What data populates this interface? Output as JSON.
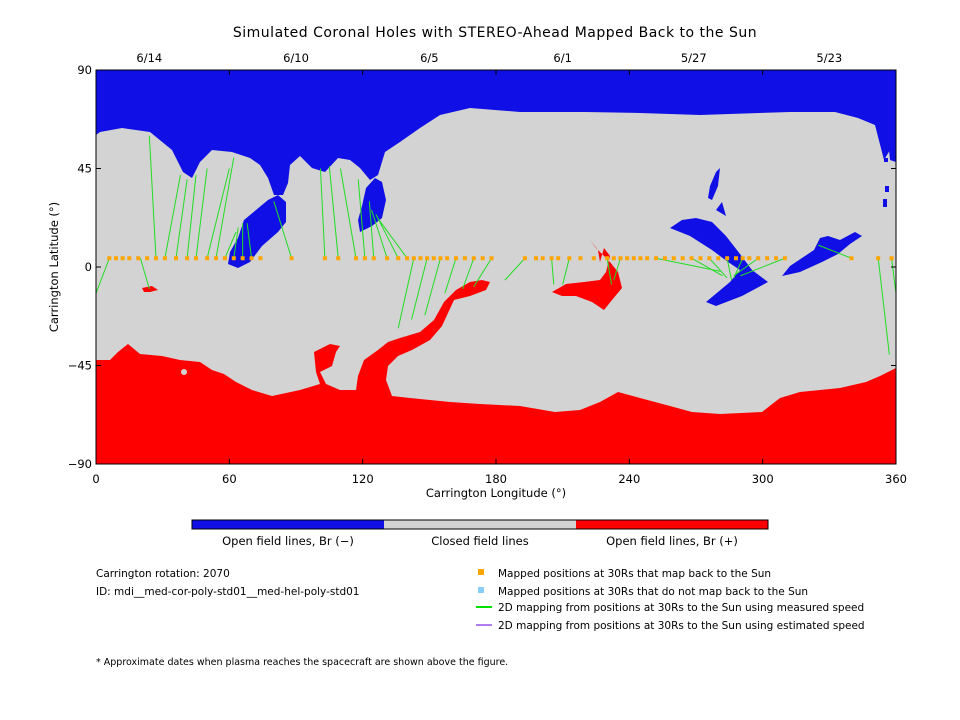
{
  "chart_data": {
    "type": "map",
    "title": "Simulated Coronal Holes with STEREO-Ahead Mapped Back to the Sun",
    "xlabel": "Carrington Longitude (°)",
    "ylabel": "Carrington Latitude (°)",
    "xlim": [
      0,
      360
    ],
    "ylim": [
      -90,
      90
    ],
    "x_ticks": [
      0,
      60,
      120,
      180,
      240,
      300,
      360
    ],
    "y_ticks": [
      90,
      45,
      0,
      -45,
      -90
    ],
    "y_tick_labels": [
      "90",
      "45",
      "0",
      "−45",
      "−90"
    ],
    "top_dates": [
      {
        "label": "6/14",
        "lon": 24
      },
      {
        "label": "6/10",
        "lon": 90
      },
      {
        "label": "6/5",
        "lon": 150
      },
      {
        "label": "6/1",
        "lon": 210
      },
      {
        "label": "5/27",
        "lon": 269
      },
      {
        "label": "5/23",
        "lon": 330
      }
    ],
    "colorbar": [
      {
        "label": "Open field lines, Br (−)",
        "color": "#1010e6"
      },
      {
        "label": "Closed field lines",
        "color": "#d3d3d3"
      },
      {
        "label": "Open field lines, Br (+)",
        "color": "#ff0000"
      }
    ],
    "mapped_points": {
      "name": "Mapped positions at 30Rs that map back to the Sun",
      "color": "#ffa500",
      "lat": 4,
      "lon": [
        6,
        9,
        12,
        15,
        19,
        23,
        27,
        31,
        36,
        41,
        45,
        50,
        54,
        58,
        62,
        66,
        70,
        74,
        88,
        103,
        109,
        117,
        121,
        125,
        131,
        136,
        140,
        143,
        146,
        149,
        152,
        155,
        158,
        162,
        166,
        170,
        174,
        178,
        193,
        198,
        201,
        205,
        208,
        213,
        218,
        224,
        230,
        233,
        236,
        239,
        242,
        245,
        248,
        252,
        256,
        260,
        264,
        268,
        272,
        276,
        280,
        284,
        288,
        291,
        294,
        298,
        302,
        306,
        310,
        340,
        352,
        358
      ]
    },
    "mapping_lines": [
      {
        "from": [
          6,
          4
        ],
        "to": [
          0,
          -12
        ]
      },
      {
        "from": [
          20,
          4
        ],
        "to": [
          24,
          -10
        ]
      },
      {
        "from": [
          27,
          4
        ],
        "to": [
          24,
          60
        ]
      },
      {
        "from": [
          31,
          4
        ],
        "to": [
          38,
          42
        ]
      },
      {
        "from": [
          36,
          4
        ],
        "to": [
          41,
          40
        ]
      },
      {
        "from": [
          41,
          4
        ],
        "to": [
          45,
          42
        ]
      },
      {
        "from": [
          45,
          4
        ],
        "to": [
          50,
          45
        ]
      },
      {
        "from": [
          50,
          4
        ],
        "to": [
          60,
          45
        ]
      },
      {
        "from": [
          54,
          4
        ],
        "to": [
          62,
          50
        ]
      },
      {
        "from": [
          58,
          4
        ],
        "to": [
          63,
          16
        ]
      },
      {
        "from": [
          62,
          4
        ],
        "to": [
          64,
          18
        ]
      },
      {
        "from": [
          66,
          4
        ],
        "to": [
          66,
          20
        ]
      },
      {
        "from": [
          70,
          4
        ],
        "to": [
          68,
          20
        ]
      },
      {
        "from": [
          88,
          4
        ],
        "to": [
          80,
          30
        ]
      },
      {
        "from": [
          103,
          4
        ],
        "to": [
          101,
          45
        ]
      },
      {
        "from": [
          109,
          4
        ],
        "to": [
          105,
          46
        ]
      },
      {
        "from": [
          117,
          4
        ],
        "to": [
          110,
          45
        ]
      },
      {
        "from": [
          121,
          4
        ],
        "to": [
          118,
          40
        ]
      },
      {
        "from": [
          125,
          4
        ],
        "to": [
          123,
          30
        ]
      },
      {
        "from": [
          131,
          4
        ],
        "to": [
          124,
          26
        ]
      },
      {
        "from": [
          136,
          4
        ],
        "to": [
          126,
          24
        ]
      },
      {
        "from": [
          140,
          4
        ],
        "to": [
          127,
          22
        ]
      },
      {
        "from": [
          143,
          4
        ],
        "to": [
          136,
          -28
        ]
      },
      {
        "from": [
          149,
          4
        ],
        "to": [
          142,
          -24
        ]
      },
      {
        "from": [
          155,
          4
        ],
        "to": [
          148,
          -22
        ]
      },
      {
        "from": [
          162,
          4
        ],
        "to": [
          157,
          -12
        ]
      },
      {
        "from": [
          170,
          4
        ],
        "to": [
          165,
          -10
        ]
      },
      {
        "from": [
          178,
          4
        ],
        "to": [
          170,
          -9
        ]
      },
      {
        "from": [
          193,
          4
        ],
        "to": [
          184,
          -6
        ]
      },
      {
        "from": [
          205,
          4
        ],
        "to": [
          206,
          -8
        ]
      },
      {
        "from": [
          213,
          4
        ],
        "to": [
          210,
          -8
        ]
      },
      {
        "from": [
          230,
          4
        ],
        "to": [
          232,
          -8
        ]
      },
      {
        "from": [
          236,
          4
        ],
        "to": [
          233,
          -6
        ]
      },
      {
        "from": [
          252,
          4
        ],
        "to": [
          281,
          -2
        ]
      },
      {
        "from": [
          268,
          4
        ],
        "to": [
          282,
          -4
        ]
      },
      {
        "from": [
          276,
          4
        ],
        "to": [
          284,
          -5
        ]
      },
      {
        "from": [
          284,
          4
        ],
        "to": [
          286,
          -6
        ]
      },
      {
        "from": [
          291,
          4
        ],
        "to": [
          287,
          -5
        ]
      },
      {
        "from": [
          298,
          4
        ],
        "to": [
          287,
          -4
        ]
      },
      {
        "from": [
          310,
          4
        ],
        "to": [
          290,
          -4
        ]
      },
      {
        "from": [
          340,
          4
        ],
        "to": [
          325,
          10
        ]
      },
      {
        "from": [
          352,
          4
        ],
        "to": [
          357,
          -40
        ]
      },
      {
        "from": [
          358,
          4
        ],
        "to": [
          360,
          -12
        ]
      }
    ],
    "grid": false
  },
  "info": {
    "rotation": "Carrington rotation: 2070",
    "id": "ID: mdi__med-cor-poly-std01__med-hel-poly-std01"
  },
  "legend": [
    {
      "label": "Mapped positions at 30Rs that map back to the Sun",
      "marker": "square",
      "color": "#ffa500"
    },
    {
      "label": "Mapped positions at 30Rs that do not map back to the Sun",
      "marker": "square",
      "color": "#87cefa"
    },
    {
      "label": "2D mapping from positions at 30Rs to the Sun using measured speed",
      "marker": "line",
      "color": "#00e000"
    },
    {
      "label": "2D mapping from positions at 30Rs to the Sun using estimated speed",
      "marker": "line",
      "color": "#b07cf0"
    }
  ],
  "footnote": "* Approximate dates when plasma reaches the spacecraft are shown above the figure."
}
